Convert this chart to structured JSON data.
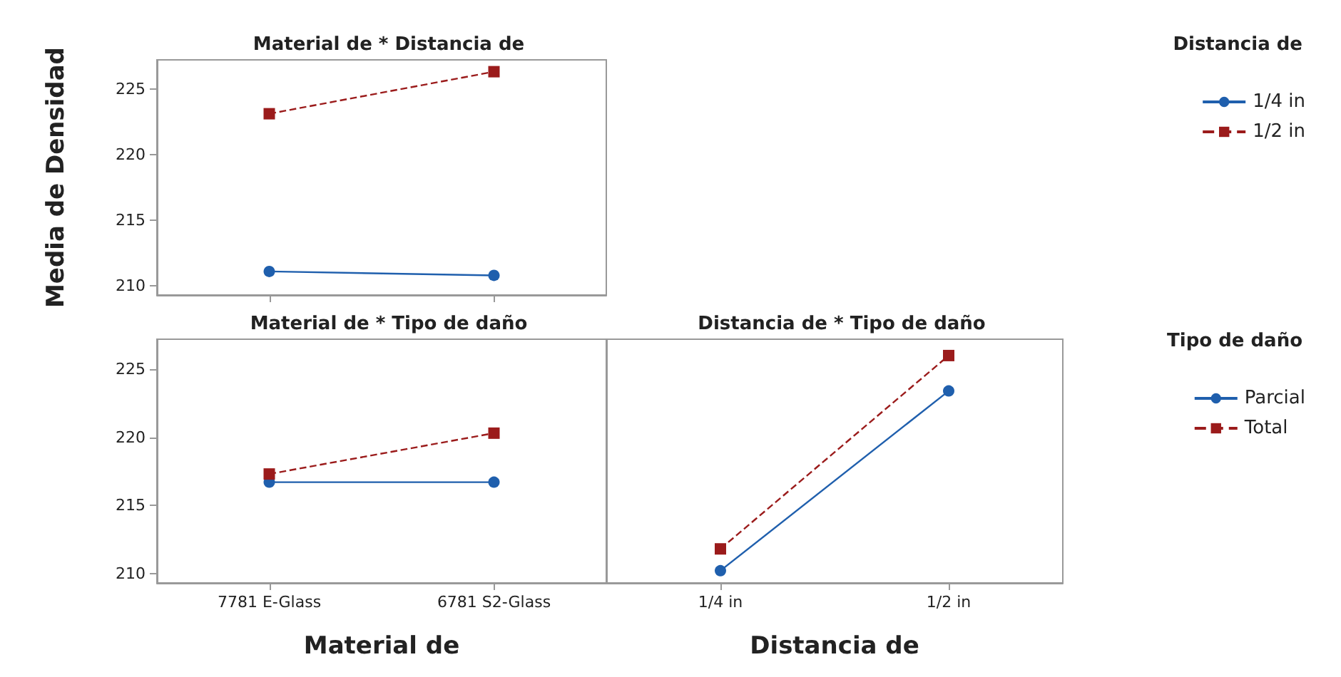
{
  "chart_data": [
    {
      "type": "line",
      "title": "Material de * Distancia de",
      "ylabel": "Media de Densidad",
      "legend_title": "Distancia de",
      "legend": "right",
      "tick_labels": "y",
      "grid": false,
      "categories": [
        "7781 E-Glass",
        "6781 S2-Glass"
      ],
      "ylim": [
        209.3,
        227.2
      ],
      "yticks": [
        210,
        215,
        220,
        225
      ],
      "series": [
        {
          "name": "1/4 in",
          "color": "#1f5fad",
          "marker": "circle",
          "line_style": "solid",
          "values": [
            211.1,
            210.8
          ]
        },
        {
          "name": "1/2 in",
          "color": "#9b1b1b",
          "marker": "square",
          "line_style": "dashed",
          "values": [
            223.1,
            226.3
          ]
        }
      ]
    },
    {
      "type": "line",
      "title": "Material de * Tipo de daño",
      "xlabel": "Material de",
      "legend": false,
      "grid": false,
      "categories": [
        "7781 E-Glass",
        "6781 S2-Glass"
      ],
      "ylim": [
        209.3,
        227.2
      ],
      "yticks": [
        210,
        215,
        220,
        225
      ],
      "series": [
        {
          "name": "Parcial",
          "color": "#1f5fad",
          "marker": "circle",
          "line_style": "solid",
          "values": [
            216.7,
            216.7
          ]
        },
        {
          "name": "Total",
          "color": "#9b1b1b",
          "marker": "square",
          "line_style": "dashed",
          "values": [
            217.3,
            220.3
          ]
        }
      ]
    },
    {
      "type": "line",
      "title": "Distancia de * Tipo de daño",
      "xlabel": "Distancia de",
      "legend_title": "Tipo de daño",
      "legend": "right",
      "tick_labels": "x",
      "grid": false,
      "categories": [
        "1/4 in",
        "1/2 in"
      ],
      "ylim": [
        209.3,
        227.2
      ],
      "yticks": [
        210,
        215,
        220,
        225
      ],
      "series": [
        {
          "name": "Parcial",
          "color": "#1f5fad",
          "marker": "circle",
          "line_style": "solid",
          "values": [
            210.2,
            223.4
          ]
        },
        {
          "name": "Total",
          "color": "#9b1b1b",
          "marker": "square",
          "line_style": "dashed",
          "values": [
            211.8,
            226.0
          ]
        }
      ]
    }
  ]
}
